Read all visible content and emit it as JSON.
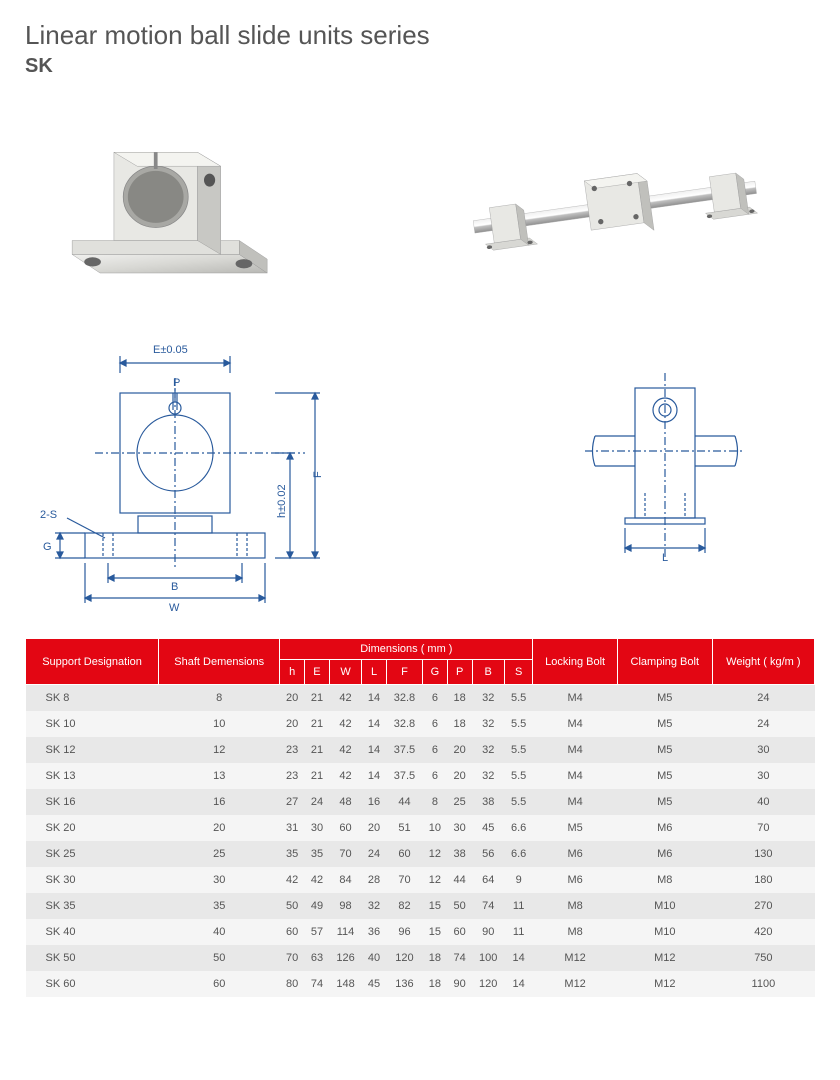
{
  "header": {
    "title": "Linear motion ball slide units series",
    "subtitle": "SK"
  },
  "diagram": {
    "labels": {
      "e_tol": "E±0.05",
      "p": "P",
      "two_s": "2-S",
      "g": "G",
      "b": "B",
      "w": "W",
      "f": "F",
      "h_tol": "h±0.02",
      "l": "L"
    },
    "stroke_color": "#295a9c",
    "fill_color": "#ffffff"
  },
  "product_colors": {
    "metal_light": "#e8e8e6",
    "metal_mid": "#c8c8c4",
    "metal_dark": "#9a9a96",
    "shaft": "#d0d0d0"
  },
  "table": {
    "header_bg": "#e30613",
    "header_fg": "#ffffff",
    "row_odd_bg": "#e8e8e8",
    "row_even_bg": "#f5f5f5",
    "headers": {
      "support": "Support Designation",
      "shaft": "Shaft Demensions",
      "dimensions": "Dimensions ( mm )",
      "locking": "Locking Bolt",
      "clamping": "Clamping Bolt",
      "weight": "Weight ( kg/m )",
      "dim_cols": [
        "h",
        "E",
        "W",
        "L",
        "F",
        "G",
        "P",
        "B",
        "S"
      ]
    },
    "rows": [
      [
        "SK 8",
        "8",
        "20",
        "21",
        "42",
        "14",
        "32.8",
        "6",
        "18",
        "32",
        "5.5",
        "M4",
        "M5",
        "24"
      ],
      [
        "SK 10",
        "10",
        "20",
        "21",
        "42",
        "14",
        "32.8",
        "6",
        "18",
        "32",
        "5.5",
        "M4",
        "M5",
        "24"
      ],
      [
        "SK 12",
        "12",
        "23",
        "21",
        "42",
        "14",
        "37.5",
        "6",
        "20",
        "32",
        "5.5",
        "M4",
        "M5",
        "30"
      ],
      [
        "SK 13",
        "13",
        "23",
        "21",
        "42",
        "14",
        "37.5",
        "6",
        "20",
        "32",
        "5.5",
        "M4",
        "M5",
        "30"
      ],
      [
        "SK 16",
        "16",
        "27",
        "24",
        "48",
        "16",
        "44",
        "8",
        "25",
        "38",
        "5.5",
        "M4",
        "M5",
        "40"
      ],
      [
        "SK 20",
        "20",
        "31",
        "30",
        "60",
        "20",
        "51",
        "10",
        "30",
        "45",
        "6.6",
        "M5",
        "M6",
        "70"
      ],
      [
        "SK 25",
        "25",
        "35",
        "35",
        "70",
        "24",
        "60",
        "12",
        "38",
        "56",
        "6.6",
        "M6",
        "M6",
        "130"
      ],
      [
        "SK 30",
        "30",
        "42",
        "42",
        "84",
        "28",
        "70",
        "12",
        "44",
        "64",
        "9",
        "M6",
        "M8",
        "180"
      ],
      [
        "SK 35",
        "35",
        "50",
        "49",
        "98",
        "32",
        "82",
        "15",
        "50",
        "74",
        "11",
        "M8",
        "M10",
        "270"
      ],
      [
        "SK 40",
        "40",
        "60",
        "57",
        "114",
        "36",
        "96",
        "15",
        "60",
        "90",
        "11",
        "M8",
        "M10",
        "420"
      ],
      [
        "SK 50",
        "50",
        "70",
        "63",
        "126",
        "40",
        "120",
        "18",
        "74",
        "100",
        "14",
        "M12",
        "M12",
        "750"
      ],
      [
        "SK 60",
        "60",
        "80",
        "74",
        "148",
        "45",
        "136",
        "18",
        "90",
        "120",
        "14",
        "M12",
        "M12",
        "1100"
      ]
    ]
  }
}
